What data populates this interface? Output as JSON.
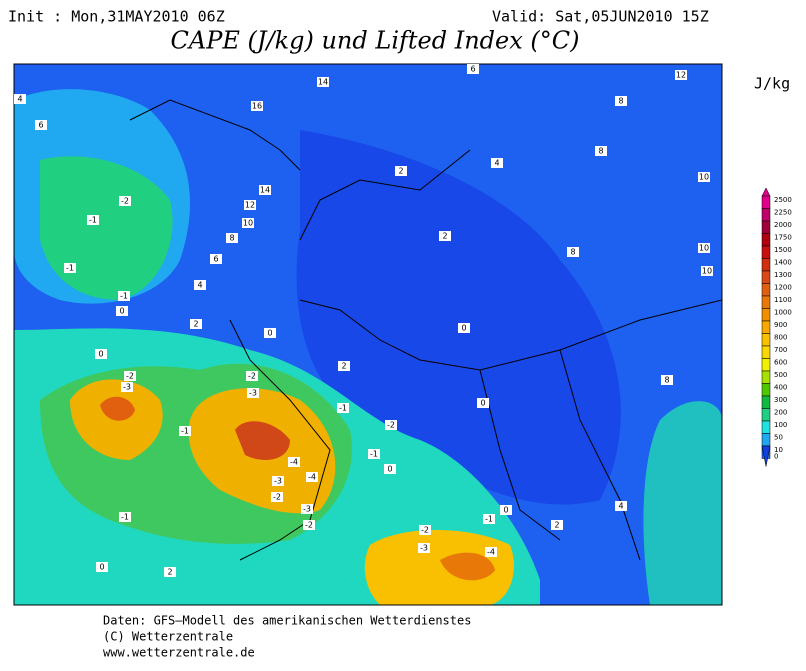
{
  "header": {
    "init": "Init : Mon,31MAY2010 06Z",
    "valid": "Valid: Sat,05JUN2010 15Z",
    "title": "CAPE (J/kg) und Lifted Index (°C)"
  },
  "legend": {
    "unit": "J/kg",
    "levels": [
      2500,
      2250,
      2000,
      1750,
      1500,
      1400,
      1300,
      1200,
      1100,
      1000,
      900,
      800,
      700,
      600,
      500,
      400,
      300,
      200,
      100,
      50,
      10,
      0
    ],
    "colors": [
      "#e0008a",
      "#c0006a",
      "#a0003a",
      "#b00010",
      "#c81010",
      "#d03010",
      "#d84818",
      "#e06010",
      "#e87808",
      "#f09000",
      "#f8a800",
      "#f8c000",
      "#f8d800",
      "#f0f000",
      "#a8e000",
      "#50c800",
      "#10b840",
      "#20d080",
      "#20e0e0",
      "#20a8f0",
      "#2070f0",
      "#1040e0"
    ]
  },
  "contour_labels": [
    4,
    6,
    14,
    16,
    12,
    14,
    10,
    8,
    6,
    4,
    2,
    0,
    0,
    -2,
    -1,
    -1,
    -1,
    0,
    -2,
    -3,
    -1,
    -2,
    -3,
    -1,
    -2,
    -1,
    0,
    0,
    -4,
    -4,
    -3,
    -2,
    -3,
    -2,
    -1,
    0,
    2,
    -2,
    -3,
    -4,
    -1,
    0,
    2,
    2,
    2,
    2,
    4,
    6,
    8,
    12,
    8,
    10,
    8,
    10,
    10,
    0,
    8,
    4
  ],
  "footer": [
    "Daten: GFS–Modell des amerikanischen Wetterdienstes",
    "(C) Wetterzentrale",
    "www.wetterzentrale.de"
  ]
}
